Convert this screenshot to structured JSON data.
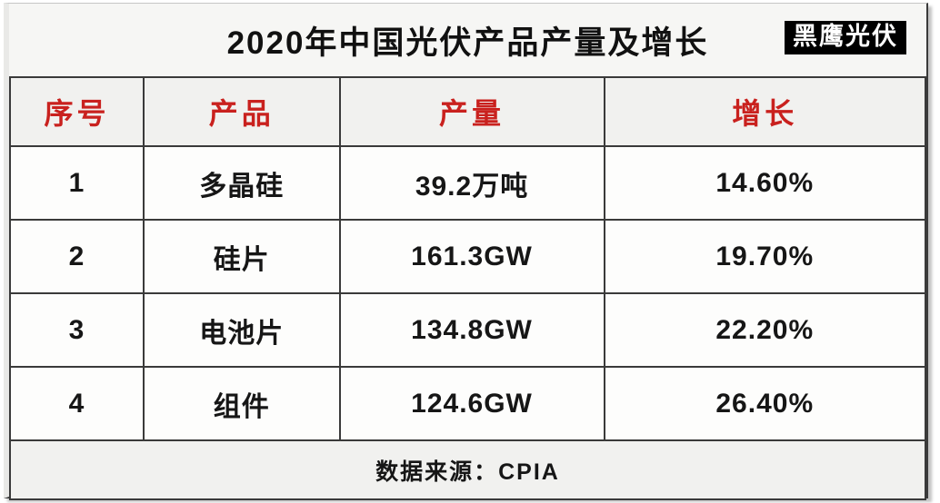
{
  "title": "2020年中国光伏产品产量及增长",
  "badge": "黑鹰光伏",
  "table": {
    "headers": [
      "序号",
      "产品",
      "产量",
      "增长"
    ],
    "rows": [
      [
        "1",
        "多晶硅",
        "39.2万吨",
        "14.60%"
      ],
      [
        "2",
        "硅片",
        "161.3GW",
        "19.70%"
      ],
      [
        "3",
        "电池片",
        "134.8GW",
        "22.20%"
      ],
      [
        "4",
        "组件",
        "124.6GW",
        "26.40%"
      ]
    ],
    "footer": "数据来源：CPIA"
  },
  "colors": {
    "header_text_red": "#c9211e",
    "border_dark": "#3a3a3a",
    "panel_bg": "#f1f1ef",
    "badge_bg": "#000000",
    "badge_text": "#ffffff"
  },
  "chart_data": {
    "type": "table",
    "title": "2020年中国光伏产品产量及增长",
    "columns": [
      "序号",
      "产品",
      "产量",
      "增长"
    ],
    "rows": [
      {
        "序号": 1,
        "产品": "多晶硅",
        "产量": "39.2万吨",
        "产量_value": 39.2,
        "产量_unit": "万吨",
        "增长_pct": 14.6
      },
      {
        "序号": 2,
        "产品": "硅片",
        "产量": "161.3GW",
        "产量_value": 161.3,
        "产量_unit": "GW",
        "增长_pct": 19.7
      },
      {
        "序号": 3,
        "产品": "电池片",
        "产量": "134.8GW",
        "产量_value": 134.8,
        "产量_unit": "GW",
        "增长_pct": 22.2
      },
      {
        "序号": 4,
        "产品": "组件",
        "产量": "124.6GW",
        "产量_value": 124.6,
        "产量_unit": "GW",
        "增长_pct": 26.4
      }
    ],
    "source_note": "数据来源：CPIA",
    "branding": "黑鹰光伏"
  }
}
